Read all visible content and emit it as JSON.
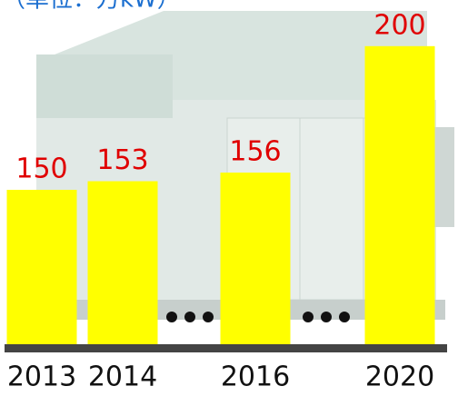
{
  "chart_data": {
    "type": "bar",
    "title": "（単位：万kW）",
    "categories": [
      "2013",
      "2014",
      "2016",
      "2020"
    ],
    "values": [
      150,
      153,
      156,
      200
    ],
    "color": "#ffff00",
    "label_color": "#e00000",
    "ylim": [
      95,
      205
    ]
  }
}
